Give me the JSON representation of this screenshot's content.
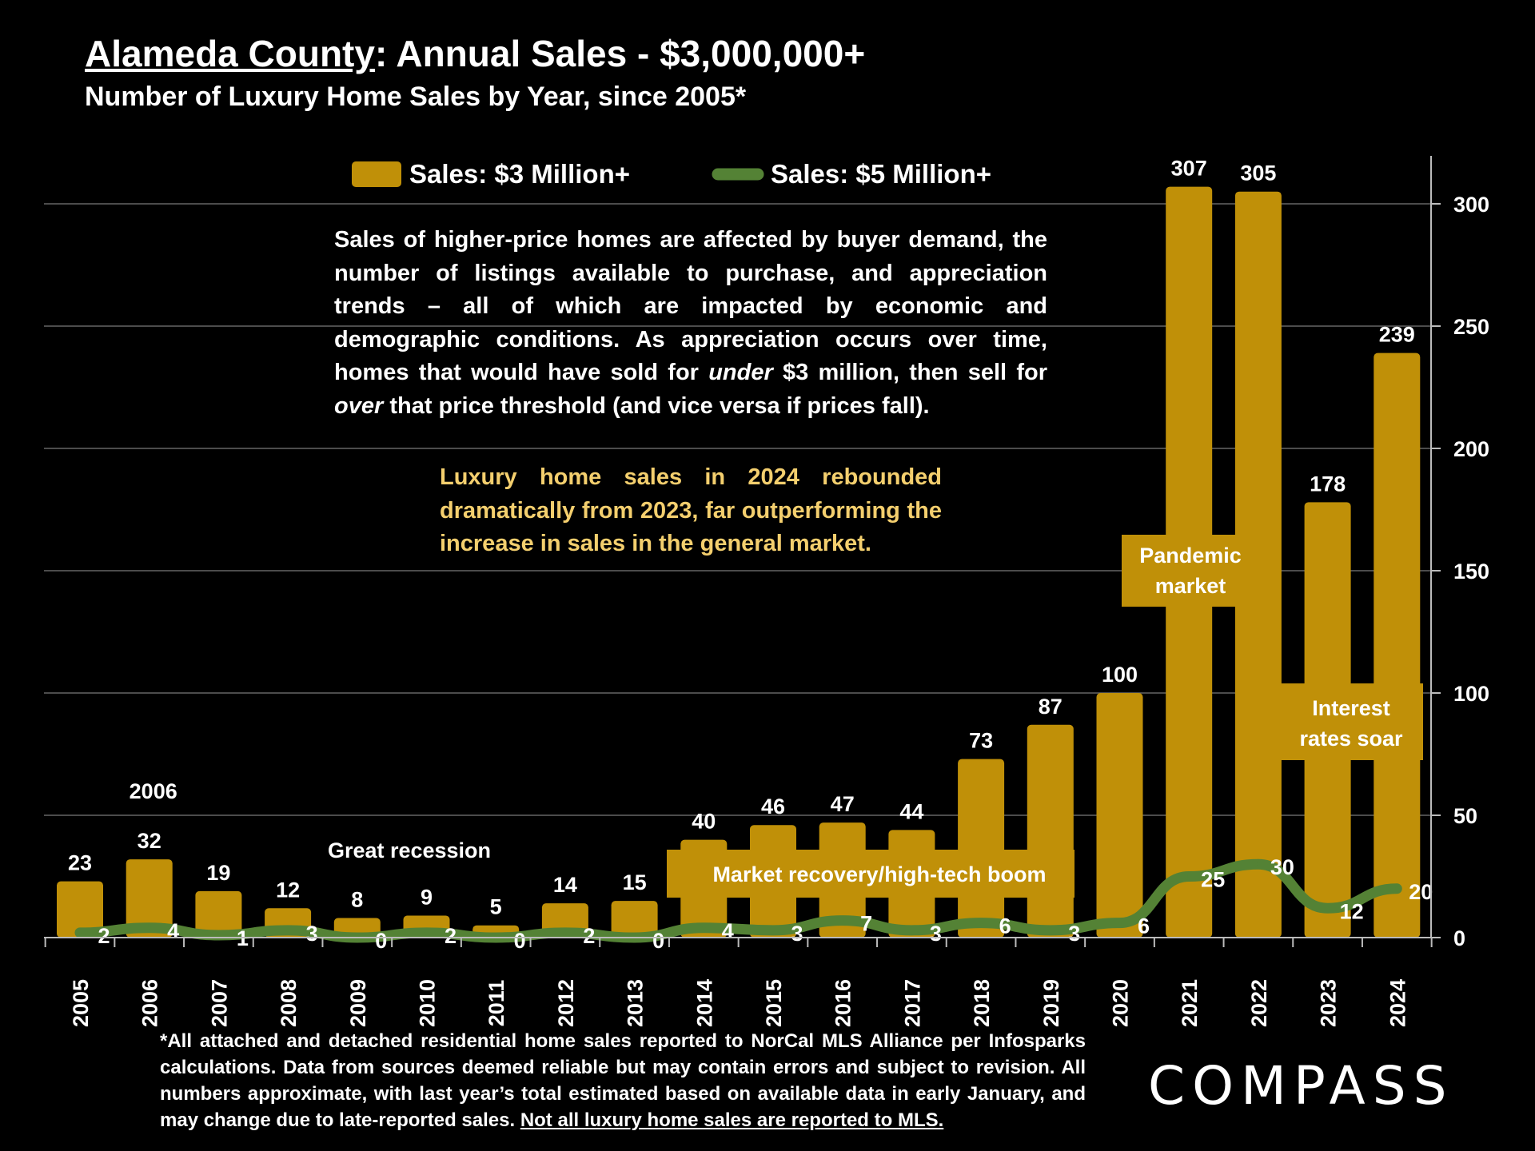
{
  "header": {
    "title_underlined": "Alameda County",
    "title_rest": ":  Annual Sales - $3,000,000+",
    "subtitle": "Number of Luxury Home Sales by Year, since 2005*"
  },
  "notes": {
    "main_a": "Sales of higher-price homes are affected by buyer demand, the number of listings available to purchase, and appreciation trends – all of which are impacted by economic and demographic conditions. As appreciation occurs over time, homes that would have sold for ",
    "main_under": "under",
    "main_b": " $3 million, then sell for ",
    "main_over": "over",
    "main_c": " that price threshold (and vice versa if prices fall).",
    "highlight": "Luxury home sales in 2024 rebounded dramatically from 2023, far outperforming the increase in sales in the general market."
  },
  "footnote": {
    "text": "*All attached and detached residential home sales reported to NorCal MLS Alliance per Infosparks calculations. Data from sources deemed reliable but may contain errors and subject to revision. All numbers approximate, with last year’s total estimated based on available data in early January, and may change due to late-reported sales. ",
    "underlined": "Not all luxury home sales are reported to MLS."
  },
  "brand": "COMPASS",
  "chart_data": {
    "type": "bar",
    "categories": [
      "2005",
      "2006",
      "2007",
      "2008",
      "2009",
      "2010",
      "2011",
      "2012",
      "2013",
      "2014",
      "2015",
      "2016",
      "2017",
      "2018",
      "2019",
      "2020",
      "2021",
      "2022",
      "2023",
      "2024"
    ],
    "series": [
      {
        "name": "Sales: $3 Million+",
        "type": "bar",
        "color": "#c09008",
        "values": [
          23,
          32,
          19,
          12,
          8,
          9,
          5,
          14,
          15,
          40,
          46,
          47,
          44,
          73,
          87,
          100,
          307,
          305,
          178,
          239
        ]
      },
      {
        "name": "Sales:  $5 Million+",
        "type": "line",
        "color": "#548235",
        "values": [
          2,
          4,
          1,
          3,
          0,
          2,
          0,
          2,
          0,
          4,
          3,
          7,
          3,
          6,
          3,
          6,
          25,
          30,
          12,
          20
        ]
      }
    ],
    "ylim": [
      0,
      320
    ],
    "yticks": [
      0,
      50,
      100,
      150,
      200,
      250,
      300
    ],
    "y_axis_side": "right",
    "grid": true,
    "legend_position": "top-center",
    "annotations": [
      {
        "text": "2006",
        "category": "2006"
      },
      {
        "text": "Great recession",
        "category": "2010"
      },
      {
        "text": "Market recovery/high-tech boom",
        "category": "2016"
      },
      {
        "text": "Pandemic market",
        "category": "2021"
      },
      {
        "text": "Interest rates soar",
        "category": "2023"
      }
    ]
  },
  "colors": {
    "background": "#000000",
    "bar": "#c09008",
    "line": "#548235",
    "highlight_text": "#f4cf6e",
    "grid": "#666666"
  }
}
